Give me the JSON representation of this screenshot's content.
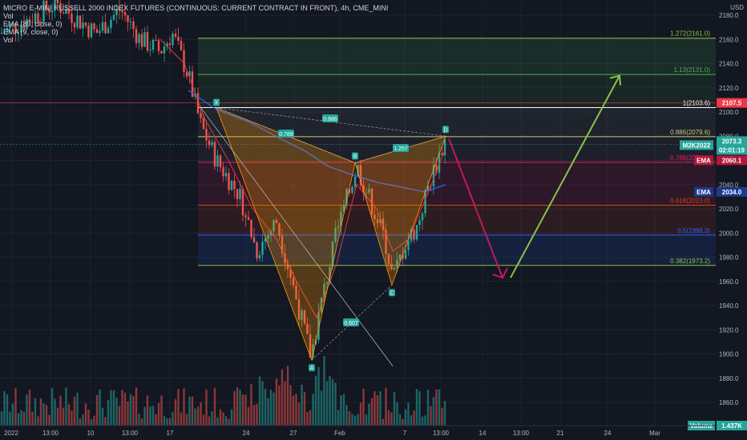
{
  "header": {
    "title": "MICRO E-MINI RUSSELL 2000 INDEX FUTURES (CONTINUOUS: CURRENT CONTRACT IN FRONT), 4h, CME_MINI",
    "indicators": [
      "Vol",
      "EMA (89, close, 0)",
      "EMA (9, close, 0)",
      "Vol"
    ],
    "currency": "USD"
  },
  "chart_data": {
    "type": "candlestick",
    "symbol": "M2K2022",
    "timeframe": "4h",
    "ylim": [
      1840,
      2190
    ],
    "y_ticks": [
      1860,
      1880,
      1900,
      1920,
      1940,
      1960,
      1980,
      2000,
      2020,
      2040,
      2060,
      2080,
      2100,
      2120,
      2140,
      2160,
      2180
    ],
    "x_ticks": [
      "2022",
      "13:00",
      "10",
      "13:00",
      "17",
      "24",
      "27",
      "Feb",
      "7",
      "13:00",
      "14",
      "13:00",
      "21",
      "24",
      "Mar"
    ],
    "fib_levels": [
      {
        "label": "1.272(2161.0)",
        "value": 2161.0,
        "color": "#8bc34a"
      },
      {
        "label": "1.13(2131.0)",
        "value": 2131.0,
        "color": "#4caf50"
      },
      {
        "label": "1(2103.6)",
        "value": 2103.6,
        "color": "#ffffff"
      },
      {
        "label": "0.886(2079.6)",
        "value": 2079.6,
        "color": "#c6c87a"
      },
      {
        "label": "0.786(2058.4)",
        "value": 2058.4,
        "color": "#e91e63"
      },
      {
        "label": "0.618(2023.0)",
        "value": 2023.0,
        "color": "#d84315"
      },
      {
        "label": "0.5(1998.3)",
        "value": 1998.3,
        "color": "#2962ff"
      },
      {
        "label": "0.382(1973.2)",
        "value": 1973.2,
        "color": "#8bc34a"
      }
    ],
    "pattern_points": [
      {
        "label": "X",
        "value": 2103.6
      },
      {
        "label": "A",
        "value": 1895
      },
      {
        "label": "B",
        "value": 2058
      },
      {
        "label": "C",
        "value": 1957
      },
      {
        "label": "D",
        "value": 2080
      }
    ],
    "ratios": [
      "0.789",
      "0.886",
      "1.257",
      "0.607"
    ],
    "price_badges": [
      {
        "text": "2107.5",
        "value": 2107.5,
        "color": "#f23645"
      },
      {
        "text": "M2K2022",
        "value": 2073.3,
        "color": "#26a69a"
      },
      {
        "text": "2073.3",
        "value": 2073.3,
        "color": "#26a69a"
      },
      {
        "text": "02:01:19",
        "value": 2073.3,
        "color": "#26a69a"
      },
      {
        "text": "EMA",
        "value": 2060.1,
        "color": "#b2173d"
      },
      {
        "text": "2060.1",
        "value": 2060.1,
        "color": "#b2173d"
      },
      {
        "text": "EMA",
        "value": 2034.0,
        "color": "#1e3a8a"
      },
      {
        "text": "2034.0",
        "value": 2034.0,
        "color": "#1e3a8a"
      }
    ],
    "ema89_last": 2034.0,
    "ema9_last": 2060.1,
    "projection": {
      "down_target": 1963,
      "up_target": 2130
    },
    "volume_label": "Volume",
    "volume_value": "1.437K",
    "colors": {
      "up": "#26a69a",
      "down": "#ef5350",
      "ema89": "#2962ff",
      "ema9": "#e53935",
      "background": "#131722"
    }
  }
}
